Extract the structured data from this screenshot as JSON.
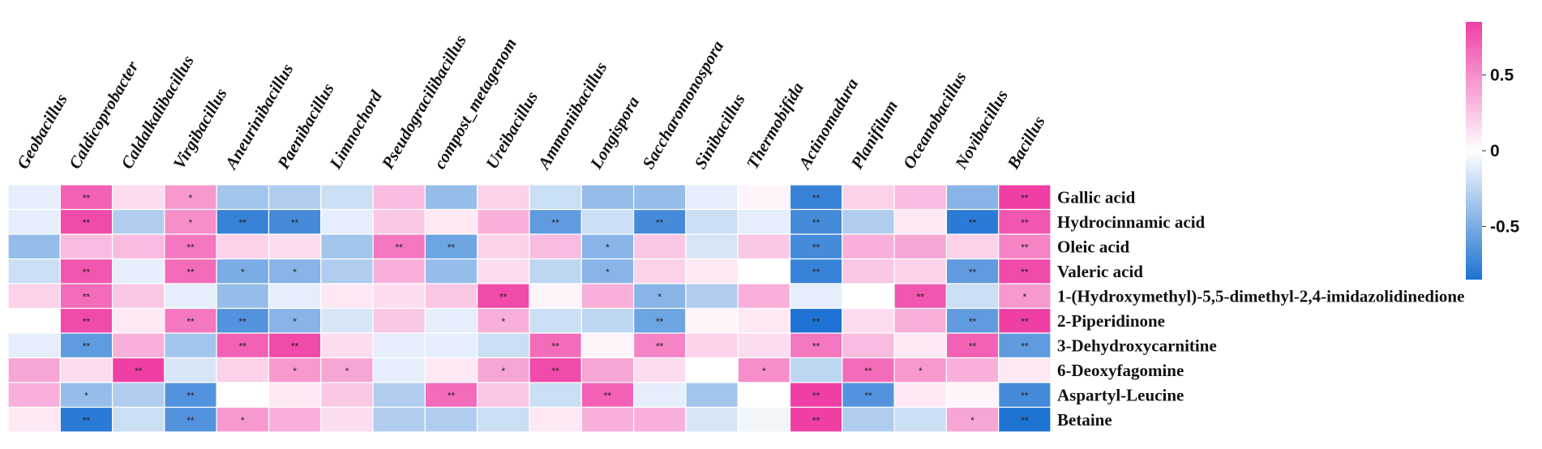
{
  "chart_data": {
    "type": "heatmap",
    "title": "",
    "columns": [
      "Geobacillus",
      "Caldicoprobacter",
      "Caldalkalibacillus",
      "Virgibacillus",
      "Aneurinibacillus",
      "Paenibacillus",
      "Limnochord",
      "Pseudogracilibacillus",
      "compost_metagenom",
      "Ureibacillus",
      "Ammoniibacillus",
      "Longispora",
      "Saccharomonospora",
      "Sinibacillus",
      "Thermobifida",
      "Actinomadura",
      "Planifilum",
      "Oceanobacillus",
      "Novibacillus",
      "Bacillus"
    ],
    "rows": [
      "Gallic acid",
      "Hydrocinnamic acid",
      "Oleic acid",
      "Valeric acid",
      "1-(Hydroxymethyl)-5,5-dimethyl-2,4-imidazolidinedione",
      "2-Piperidinone",
      "3-Dehydroxycarnitine",
      "6-Deoxyfagomine",
      "Aspartyl-Leucine",
      "Betaine"
    ],
    "values": [
      [
        -0.1,
        0.7,
        0.15,
        0.45,
        -0.35,
        -0.3,
        -0.2,
        0.3,
        -0.4,
        0.2,
        -0.2,
        -0.4,
        -0.4,
        -0.1,
        0.05,
        -0.75,
        0.2,
        0.3,
        -0.45,
        0.85
      ],
      [
        -0.1,
        0.8,
        -0.3,
        0.5,
        -0.75,
        -0.7,
        -0.1,
        0.25,
        0.1,
        0.35,
        -0.6,
        -0.2,
        -0.7,
        -0.2,
        -0.1,
        -0.7,
        -0.3,
        0.1,
        -0.8,
        0.75
      ],
      [
        -0.4,
        0.3,
        0.3,
        0.6,
        0.2,
        0.15,
        -0.35,
        0.6,
        -0.55,
        0.2,
        0.3,
        -0.45,
        0.25,
        -0.15,
        0.25,
        -0.7,
        0.35,
        0.4,
        0.2,
        0.55
      ],
      [
        -0.2,
        0.75,
        -0.1,
        0.65,
        -0.5,
        -0.45,
        -0.3,
        0.35,
        -0.4,
        0.15,
        -0.25,
        -0.45,
        0.2,
        0.1,
        0.0,
        -0.75,
        0.25,
        0.2,
        -0.6,
        0.8
      ],
      [
        0.2,
        0.65,
        0.25,
        -0.1,
        -0.4,
        -0.1,
        0.1,
        0.15,
        0.25,
        0.8,
        0.05,
        0.35,
        -0.45,
        -0.3,
        0.35,
        -0.1,
        0.0,
        0.75,
        -0.2,
        0.45
      ],
      [
        0.0,
        0.8,
        0.1,
        0.6,
        -0.65,
        -0.45,
        -0.15,
        0.25,
        -0.1,
        0.35,
        -0.2,
        -0.25,
        -0.55,
        0.05,
        0.1,
        -0.85,
        0.15,
        0.35,
        -0.6,
        0.85
      ],
      [
        -0.1,
        -0.6,
        0.35,
        -0.35,
        0.7,
        0.8,
        0.15,
        -0.1,
        -0.1,
        -0.2,
        0.65,
        0.05,
        0.55,
        0.2,
        0.15,
        0.6,
        0.3,
        0.1,
        0.7,
        -0.6
      ],
      [
        0.4,
        0.15,
        0.85,
        -0.15,
        0.2,
        0.45,
        0.4,
        -0.1,
        0.1,
        0.4,
        0.8,
        0.4,
        0.15,
        0.0,
        0.5,
        -0.25,
        0.65,
        0.45,
        0.35,
        0.1
      ],
      [
        0.35,
        -0.4,
        -0.3,
        -0.65,
        0.0,
        0.1,
        0.25,
        -0.3,
        0.65,
        0.25,
        -0.2,
        0.7,
        -0.1,
        -0.35,
        0.0,
        0.85,
        -0.65,
        0.1,
        0.05,
        -0.7
      ],
      [
        0.1,
        -0.8,
        -0.2,
        -0.65,
        0.45,
        0.35,
        0.15,
        -0.3,
        -0.3,
        -0.2,
        0.1,
        0.35,
        0.35,
        -0.15,
        -0.05,
        0.85,
        -0.3,
        -0.2,
        0.4,
        -0.95
      ]
    ],
    "significance": [
      [
        "",
        "**",
        "",
        "*",
        "",
        "",
        "",
        "",
        "",
        "",
        "",
        "",
        "",
        "",
        "",
        "**",
        "",
        "",
        "",
        "**"
      ],
      [
        "",
        "**",
        "",
        "*",
        "**",
        "**",
        "",
        "",
        "",
        "",
        "**",
        "",
        "**",
        "",
        "",
        "**",
        "",
        "",
        "**",
        "**"
      ],
      [
        "",
        "",
        "",
        "**",
        "",
        "",
        "",
        "**",
        "**",
        "",
        "",
        "*",
        "",
        "",
        "",
        "**",
        "",
        "",
        "",
        "**"
      ],
      [
        "",
        "**",
        "",
        "**",
        "*",
        "*",
        "",
        "",
        "",
        "",
        "",
        "*",
        "",
        "",
        "",
        "**",
        "",
        "",
        "**",
        "**"
      ],
      [
        "",
        "**",
        "",
        "",
        "",
        "",
        "",
        "",
        "",
        "**",
        "",
        "",
        "*",
        "",
        "",
        "",
        "",
        "**",
        "",
        "*"
      ],
      [
        "",
        "**",
        "",
        "**",
        "**",
        "*",
        "",
        "",
        "",
        "*",
        "",
        "",
        "**",
        "",
        "",
        "**",
        "",
        "",
        "**",
        "**"
      ],
      [
        "",
        "**",
        "",
        "",
        "**",
        "**",
        "",
        "",
        "",
        "",
        "**",
        "",
        "**",
        "",
        "",
        "**",
        "",
        "",
        "**",
        "**"
      ],
      [
        "",
        "",
        "**",
        "",
        "",
        "*",
        "*",
        "",
        "",
        "*",
        "**",
        "",
        "",
        "",
        "*",
        "",
        "**",
        "*",
        "",
        ""
      ],
      [
        "",
        "*",
        "",
        "**",
        "",
        "",
        "",
        "",
        "**",
        "",
        "",
        "**",
        "",
        "",
        "",
        "**",
        "**",
        "",
        "",
        "**"
      ],
      [
        "",
        "**",
        "",
        "**",
        "*",
        "",
        "",
        "",
        "",
        "",
        "",
        "",
        "",
        "",
        "",
        "**",
        "",
        "",
        "*",
        "**"
      ]
    ],
    "colorbar": {
      "range": [
        -0.85,
        0.85
      ],
      "ticks": [
        0.5,
        0,
        -0.5
      ],
      "tick_labels": [
        "0.5",
        "0",
        "-0.5"
      ],
      "colors": {
        "low": "#1e72d2",
        "mid": "#ffffff",
        "high": "#ef3fa5"
      }
    }
  }
}
